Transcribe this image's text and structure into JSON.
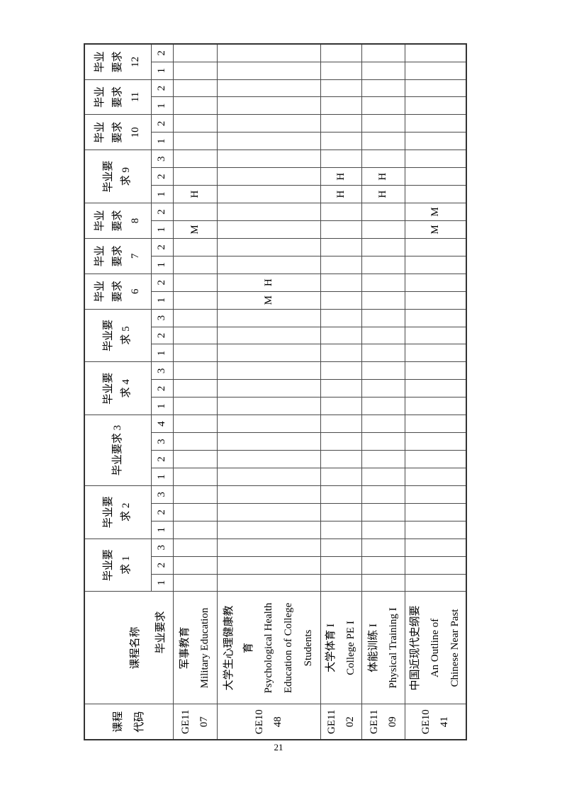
{
  "page": {
    "number": "21"
  },
  "colors": {
    "background": "#ffffff",
    "text": "#000000",
    "border_inner": "#4a4a4a",
    "border_outer": "#333333"
  },
  "table": {
    "corner": {
      "code_header_lines": [
        "课程",
        "代码"
      ],
      "name_header": "课程名称",
      "req_header": "毕业要求"
    },
    "requirements": [
      {
        "id": "1",
        "label_lines": [
          "毕业要",
          "求 1"
        ],
        "subcols": [
          "1",
          "2",
          "3"
        ]
      },
      {
        "id": "2",
        "label_lines": [
          "毕业要",
          "求 2"
        ],
        "subcols": [
          "1",
          "2",
          "3"
        ]
      },
      {
        "id": "3",
        "label_lines": [
          "毕业要求 3"
        ],
        "subcols": [
          "1",
          "2",
          "3",
          "4"
        ]
      },
      {
        "id": "4",
        "label_lines": [
          "毕业要",
          "求 4"
        ],
        "subcols": [
          "1",
          "2",
          "3"
        ]
      },
      {
        "id": "5",
        "label_lines": [
          "毕业要",
          "求 5"
        ],
        "subcols": [
          "1",
          "2",
          "3"
        ]
      },
      {
        "id": "6",
        "label_lines": [
          "毕业",
          "要求",
          "6"
        ],
        "subcols": [
          "1",
          "2"
        ]
      },
      {
        "id": "7",
        "label_lines": [
          "毕业",
          "要求",
          "7"
        ],
        "subcols": [
          "1",
          "2"
        ]
      },
      {
        "id": "8",
        "label_lines": [
          "毕业",
          "要求",
          "8"
        ],
        "subcols": [
          "1",
          "2"
        ]
      },
      {
        "id": "9",
        "label_lines": [
          "毕业要",
          "求 9"
        ],
        "subcols": [
          "1",
          "2",
          "3"
        ]
      },
      {
        "id": "10",
        "label_lines": [
          "毕业",
          "要求",
          "10"
        ],
        "subcols": [
          "1",
          "2"
        ]
      },
      {
        "id": "11",
        "label_lines": [
          "毕业",
          "要求",
          "11"
        ],
        "subcols": [
          "1",
          "2"
        ]
      },
      {
        "id": "12",
        "label_lines": [
          "毕业",
          "要求",
          "12"
        ],
        "subcols": [
          "1",
          "2"
        ]
      }
    ],
    "courses": [
      {
        "code_lines": [
          "GE11",
          "07"
        ],
        "name_lines": [
          "军事教育",
          "Military Education"
        ],
        "marks": {
          "8.1": "M",
          "9.1": "H"
        }
      },
      {
        "code_lines": [
          "GE10",
          "48"
        ],
        "name_lines": [
          "大学生心理健康教",
          "育",
          "Psychological Health",
          "Education of College",
          "Students"
        ],
        "marks": {
          "6.1": "M",
          "6.2": "H"
        }
      },
      {
        "code_lines": [
          "GE11",
          "02"
        ],
        "name_lines": [
          "大学体育 I",
          "College PE I"
        ],
        "marks": {
          "9.1": "H",
          "9.2": "H"
        }
      },
      {
        "code_lines": [
          "GE11",
          "09"
        ],
        "name_lines": [
          "体能训练 I",
          "Physical Training I"
        ],
        "marks": {
          "9.1": "H",
          "9.2": "H"
        }
      },
      {
        "code_lines": [
          "GE10",
          "41"
        ],
        "name_lines": [
          "中国近现代史纲要",
          "An Outline of",
          "Chinese Near Past"
        ],
        "marks": {
          "8.1": "M",
          "8.2": "M"
        }
      }
    ]
  }
}
